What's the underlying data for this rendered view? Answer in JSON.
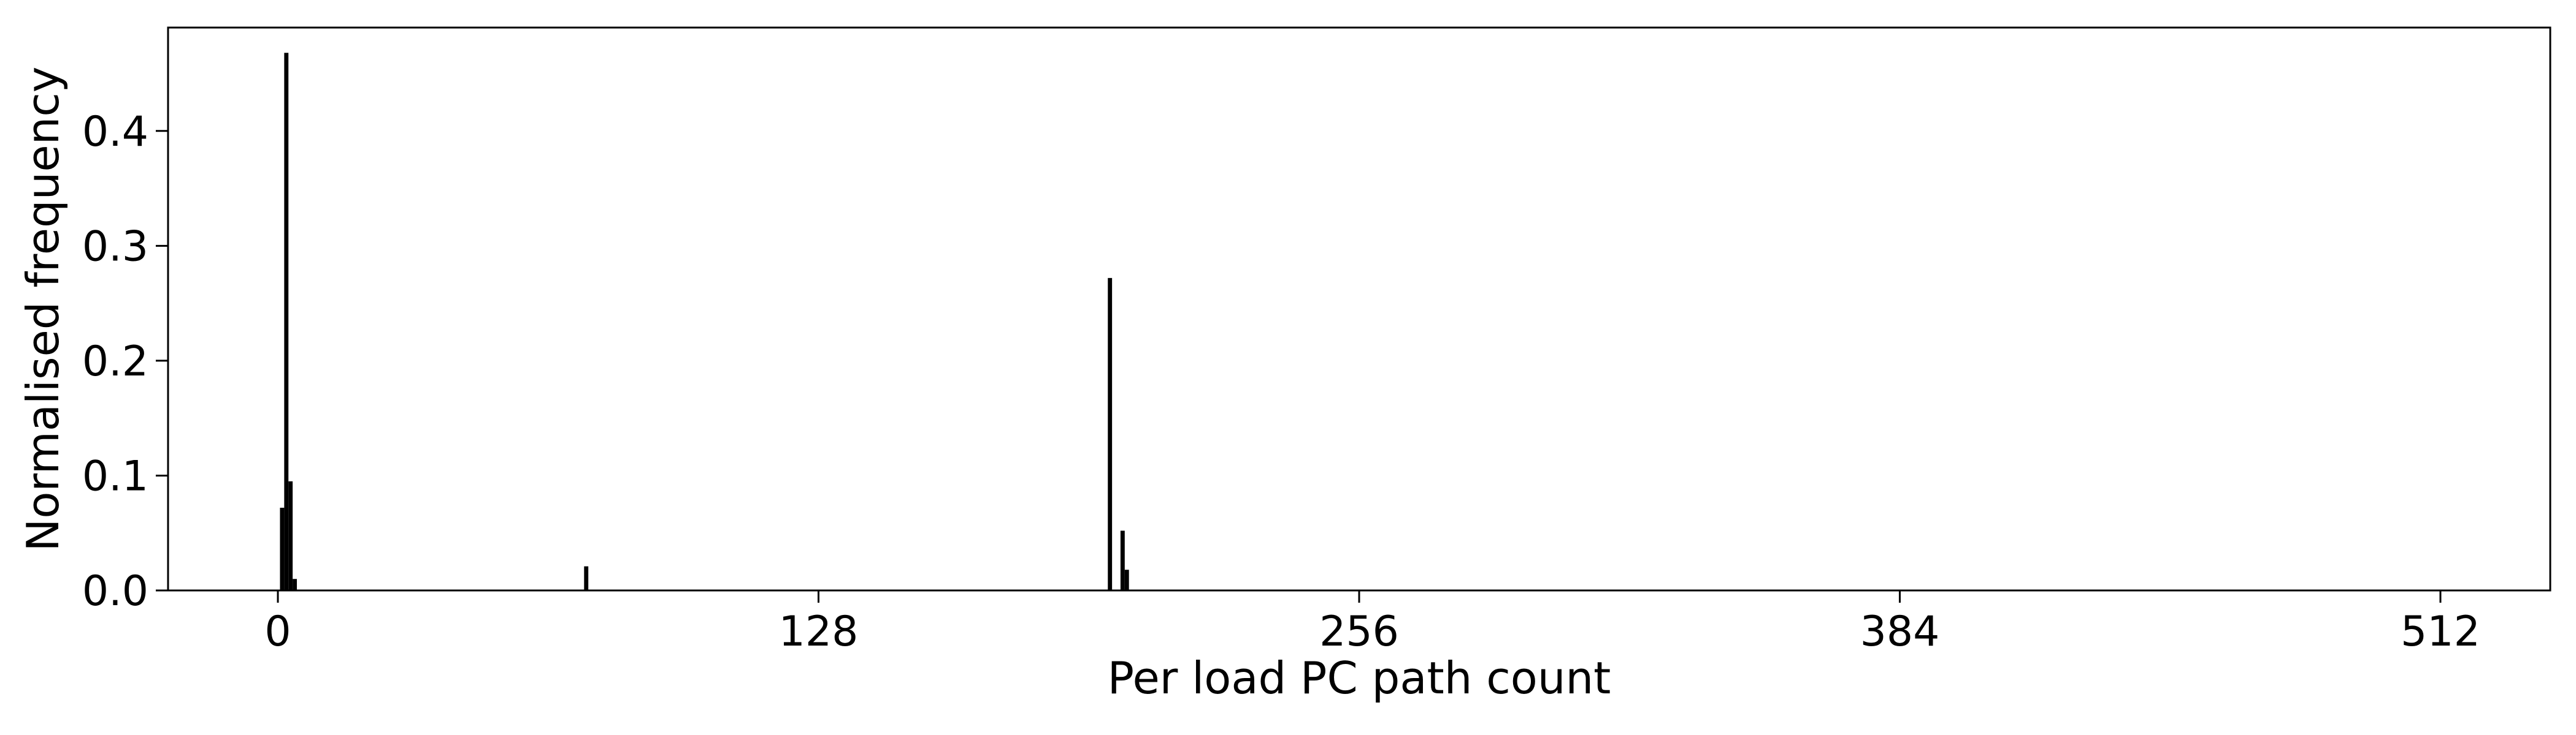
{
  "chart_data": {
    "type": "bar",
    "title": "",
    "xlabel": "Per load PC path count",
    "ylabel": "Normalised frequency",
    "xlim": [
      -26,
      538
    ],
    "ylim": [
      0,
      0.49
    ],
    "xticks": [
      0,
      128,
      256,
      384,
      512
    ],
    "xtick_labels": [
      "0",
      "128",
      "256",
      "384",
      "512"
    ],
    "yticks": [
      0.0,
      0.1,
      0.2,
      0.3,
      0.4
    ],
    "ytick_labels": [
      "0.0",
      "0.1",
      "0.2",
      "0.3",
      "0.4"
    ],
    "grid": false,
    "legend": null,
    "bar_color": "#000000",
    "bar_width": 1,
    "baseline_color": "#000000",
    "x": [
      1,
      2,
      3,
      4,
      73,
      197,
      200,
      201
    ],
    "values": [
      0.072,
      0.468,
      0.095,
      0.01,
      0.021,
      0.272,
      0.052,
      0.018
    ]
  }
}
